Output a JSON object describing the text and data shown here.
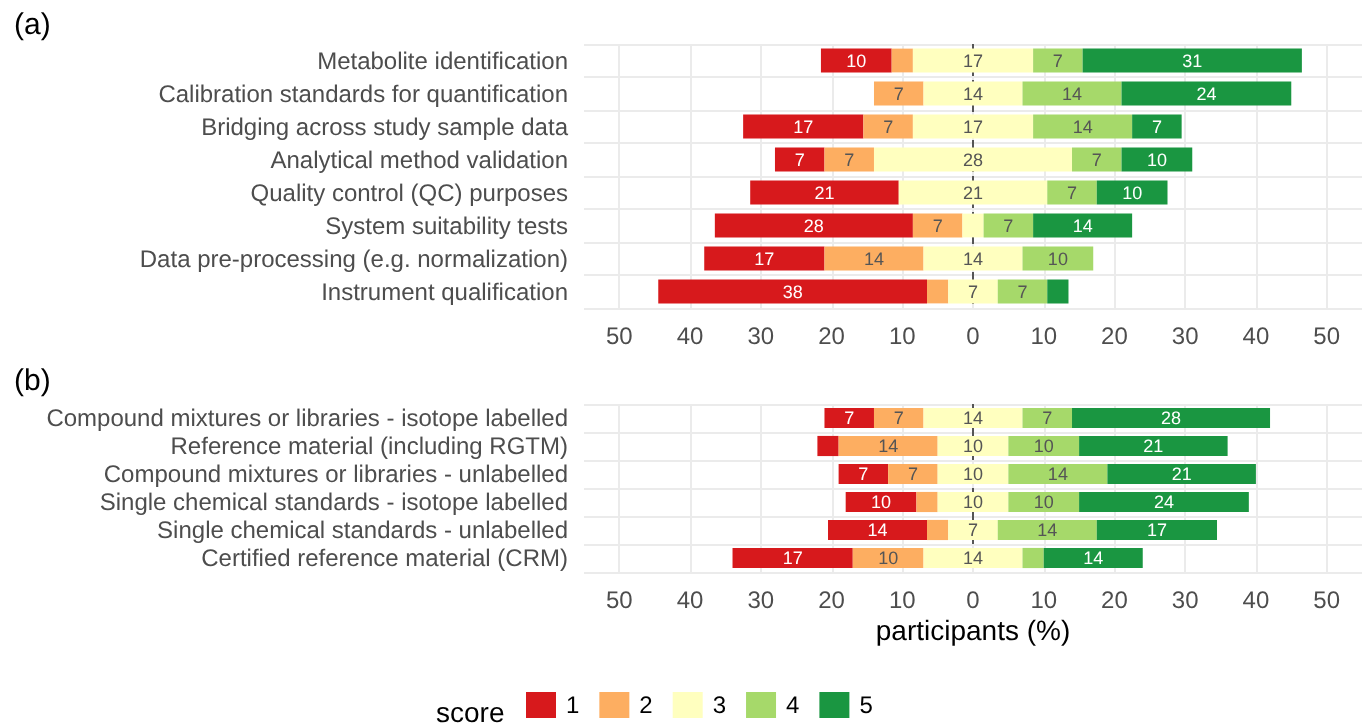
{
  "chart_data": [
    {
      "type": "bar",
      "title": "(a)",
      "orientation": "horizontal",
      "grid": true,
      "legend": false,
      "categories": [
        "Metabolite identification",
        "Calibration standards for quantification",
        "Bridging across study sample data",
        "Analytical method validation",
        "Quality control (QC) purposes",
        "System suitability tests",
        "Data pre-processing (e.g. normalization)",
        "Instrument qualification"
      ],
      "xlim": [
        -55,
        55
      ],
      "xticks": [
        {
          "value": -50,
          "label": "50"
        },
        {
          "value": -40,
          "label": "40"
        },
        {
          "value": -30,
          "label": "30"
        },
        {
          "value": -20,
          "label": "20"
        },
        {
          "value": -10,
          "label": "10"
        },
        0,
        10,
        20,
        30,
        40,
        50
      ],
      "ref_lines": [
        {
          "axis": "x",
          "value": 0,
          "line_style": "dashed",
          "color": "#555555"
        }
      ],
      "series": [
        {
          "color": "#d7191c",
          "values": [
            10,
            null,
            17,
            7,
            21,
            28,
            17,
            38
          ],
          "base": [
            -21.5,
            null,
            -32.5,
            -28,
            -31.5,
            -36.5,
            -38,
            -44.5
          ],
          "value_labels": [
            "10",
            null,
            "17",
            "7",
            "21",
            "28",
            "17",
            "38"
          ]
        },
        {
          "color": "#fdae61",
          "values": [
            3,
            7,
            7,
            7,
            null,
            7,
            14,
            3
          ],
          "base": [
            -11.5,
            -14,
            -15.5,
            -21,
            null,
            -8.5,
            -21,
            -6.5
          ],
          "value_labels": [
            null,
            "7",
            "7",
            "7",
            null,
            "7",
            "14",
            null
          ]
        },
        {
          "color": "#ffffbf",
          "values": [
            17,
            14,
            17,
            28,
            21,
            3,
            14,
            7
          ],
          "base": [
            -8.5,
            -7,
            -8.5,
            -14,
            -10.5,
            -1.5,
            -7,
            -3.5
          ],
          "value_labels": [
            "17",
            "14",
            "17",
            "28",
            "21",
            null,
            "14",
            "7"
          ]
        },
        {
          "color": "#a6d96a",
          "values": [
            7,
            14,
            14,
            7,
            7,
            7,
            10,
            7
          ],
          "base": [
            8.5,
            7,
            8.5,
            14,
            10.5,
            1.5,
            7,
            3.5
          ],
          "value_labels": [
            "7",
            "14",
            "14",
            "7",
            "7",
            "7",
            "10",
            "7"
          ]
        },
        {
          "color": "#1a9641",
          "values": [
            31,
            24,
            7,
            10,
            10,
            14,
            null,
            3
          ],
          "base": [
            15.5,
            21,
            22.5,
            21,
            17.5,
            8.5,
            null,
            10.5
          ],
          "value_labels": [
            "31",
            "24",
            "7",
            "10",
            "10",
            "14",
            null,
            null
          ]
        }
      ]
    },
    {
      "type": "bar",
      "title": "(b)",
      "orientation": "horizontal",
      "grid": true,
      "legend": "bottom",
      "legend_title": "score",
      "xlabel": "participants (%)",
      "categories": [
        "Compound mixtures or libraries - isotope labelled",
        "Reference material (including RGTM)",
        "Compound mixtures or libraries - unlabelled",
        "Single chemical standards - isotope labelled",
        "Single chemical standards - unlabelled",
        "Certified reference material (CRM)"
      ],
      "xlim": [
        -55,
        55
      ],
      "xticks": [
        {
          "value": -50,
          "label": "50"
        },
        {
          "value": -40,
          "label": "40"
        },
        {
          "value": -30,
          "label": "30"
        },
        {
          "value": -20,
          "label": "20"
        },
        {
          "value": -10,
          "label": "10"
        },
        0,
        10,
        20,
        30,
        40,
        50
      ],
      "ref_lines": [
        {
          "axis": "x",
          "value": 0,
          "line_style": "dashed",
          "color": "#555555"
        }
      ],
      "series": [
        {
          "name": "1",
          "color": "#d7191c",
          "values": [
            7,
            3,
            7,
            10,
            14,
            17
          ],
          "base": [
            -21,
            -22,
            -19,
            -18,
            -20.5,
            -34
          ],
          "value_labels": [
            "7",
            null,
            "7",
            "10",
            "14",
            "17"
          ]
        },
        {
          "name": "2",
          "color": "#fdae61",
          "values": [
            7,
            14,
            7,
            3,
            3,
            10
          ],
          "base": [
            -14,
            -19,
            -12,
            -8,
            -6.5,
            -17
          ],
          "value_labels": [
            "7",
            "14",
            "7",
            null,
            null,
            "10"
          ]
        },
        {
          "name": "3",
          "color": "#ffffbf",
          "values": [
            14,
            10,
            10,
            10,
            7,
            14
          ],
          "base": [
            -7,
            -5,
            -5,
            -5,
            -3.5,
            -7
          ],
          "value_labels": [
            "14",
            "10",
            "10",
            "10",
            "7",
            "14"
          ]
        },
        {
          "name": "4",
          "color": "#a6d96a",
          "values": [
            7,
            10,
            14,
            10,
            14,
            3
          ],
          "base": [
            7,
            5,
            5,
            5,
            3.5,
            7
          ],
          "value_labels": [
            "7",
            "10",
            "14",
            "10",
            "14",
            null
          ]
        },
        {
          "name": "5",
          "color": "#1a9641",
          "values": [
            28,
            21,
            21,
            24,
            17,
            14
          ],
          "base": [
            14,
            15,
            19,
            15,
            17.5,
            10
          ],
          "value_labels": [
            "28",
            "21",
            "21",
            "24",
            "17",
            "14"
          ]
        }
      ]
    }
  ]
}
